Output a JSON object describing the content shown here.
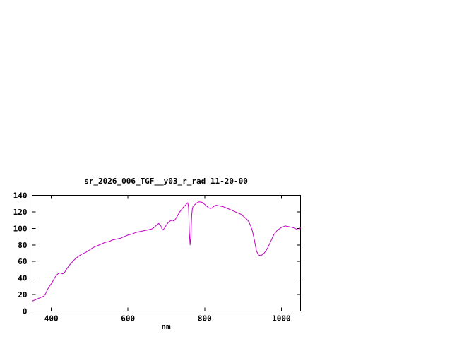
{
  "background": "#ffffff",
  "chart_data": {
    "type": "line",
    "title": "sr_2026_006_TGF__y03_r_rad 11-20-00",
    "xlabel": "nm",
    "ylabel": "",
    "xlim": [
      350,
      1050
    ],
    "ylim": [
      0,
      140
    ],
    "xticks": [
      400,
      600,
      800,
      1000
    ],
    "yticks": [
      0,
      20,
      40,
      60,
      80,
      100,
      120,
      140
    ],
    "grid": false,
    "legend": "none",
    "frame_color": "#000000",
    "line_color": "#c000c0",
    "series": [
      {
        "name": "sr_2026_006_TGF__y03_r_rad",
        "x": [
          350,
          355,
          360,
          365,
          370,
          375,
          380,
          385,
          390,
          395,
          400,
          405,
          410,
          415,
          420,
          425,
          430,
          435,
          440,
          445,
          450,
          460,
          470,
          480,
          490,
          500,
          510,
          520,
          530,
          540,
          550,
          560,
          570,
          580,
          590,
          600,
          610,
          620,
          630,
          640,
          650,
          660,
          665,
          670,
          675,
          680,
          685,
          690,
          695,
          700,
          705,
          710,
          715,
          720,
          725,
          730,
          735,
          740,
          745,
          750,
          753,
          756,
          758,
          760,
          762,
          764,
          766,
          768,
          770,
          775,
          780,
          785,
          790,
          795,
          800,
          805,
          810,
          815,
          820,
          825,
          830,
          840,
          850,
          860,
          870,
          880,
          890,
          895,
          900,
          905,
          910,
          915,
          920,
          925,
          930,
          935,
          940,
          945,
          950,
          955,
          960,
          965,
          970,
          975,
          980,
          990,
          1000,
          1010,
          1020,
          1030,
          1040,
          1045,
          1050
        ],
        "y": [
          12,
          13,
          14,
          15,
          16,
          17,
          18,
          21,
          26,
          30,
          33,
          37,
          41,
          44,
          46,
          46,
          45,
          47,
          51,
          54,
          57,
          62,
          66,
          69,
          71,
          74,
          77,
          79,
          81,
          83,
          84,
          86,
          87,
          88,
          90,
          92,
          93,
          95,
          96,
          97,
          98,
          99,
          100,
          102,
          104,
          106,
          104,
          98,
          100,
          104,
          107,
          109,
          110,
          109,
          112,
          116,
          120,
          123,
          126,
          128,
          130,
          131,
          125,
          95,
          80,
          90,
          115,
          124,
          127,
          129,
          131,
          132,
          132,
          131,
          129,
          127,
          125,
          124,
          125,
          127,
          128,
          127,
          126,
          124,
          122,
          120,
          118,
          117,
          115,
          113,
          111,
          108,
          103,
          96,
          85,
          73,
          68,
          67,
          68,
          70,
          73,
          77,
          82,
          87,
          92,
          98,
          101,
          103,
          102,
          101,
          99,
          98,
          101
        ]
      }
    ]
  }
}
